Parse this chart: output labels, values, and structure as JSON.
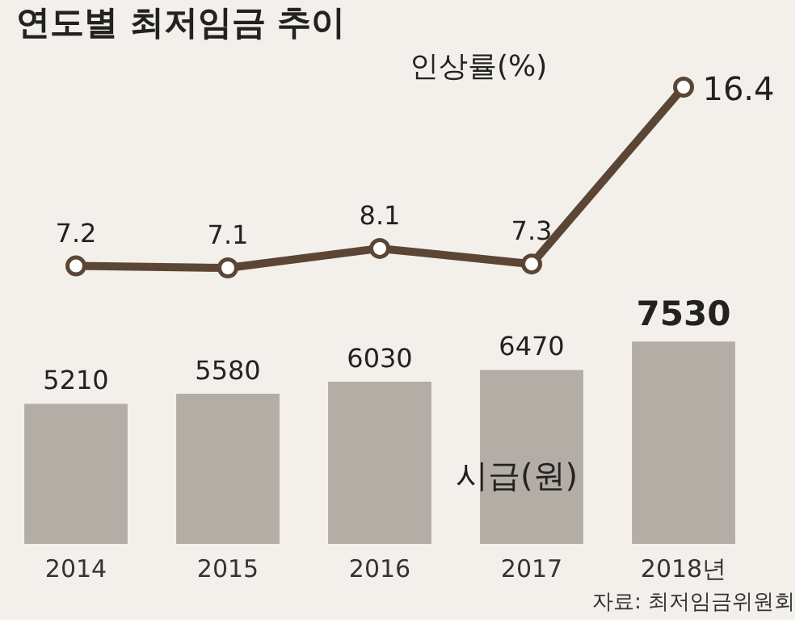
{
  "chart_data": [
    {
      "type": "line",
      "title": "연도별 최저임금 추이",
      "categories": [
        null,
        null,
        null,
        null,
        null
      ],
      "series": [
        {
          "name": "인상률(%)",
          "color": "#5b4636",
          "values": [
            7.2,
            7.1,
            8.1,
            7.3,
            16.4
          ]
        }
      ],
      "data_labels": true,
      "tick_labels": false,
      "marker": "circle",
      "line_style": "solid"
    },
    {
      "type": "bar",
      "categories": [
        "2014",
        "2015",
        "2016",
        "2017",
        "2018년"
      ],
      "series": [
        {
          "name": "시급(원)",
          "color": "#b3ada5",
          "values": [
            5210,
            5580,
            6030,
            6470,
            7530
          ]
        }
      ],
      "data_labels": true,
      "tick_labels": "x",
      "annotations": [
        "자료: 최저임금위원회"
      ]
    }
  ]
}
